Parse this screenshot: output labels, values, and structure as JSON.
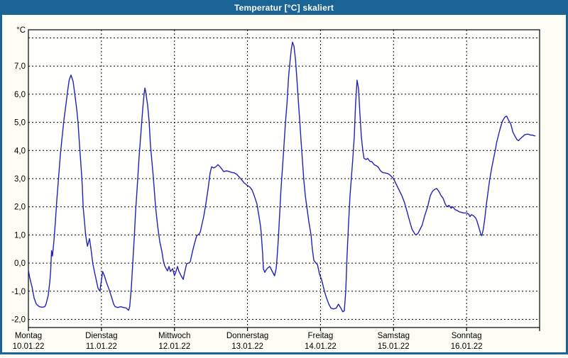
{
  "window": {
    "title": "Temperatur [°C] skaliert"
  },
  "colors": {
    "titlebar": "#1a6496",
    "frame": "#1a6496",
    "content_bg": "#fdfdf6",
    "plot_bg": "#fffffe",
    "grid": "#000000",
    "axis_border": "#000000",
    "line": "#2222b8",
    "label_text": "#000000"
  },
  "chart_data": {
    "type": "line",
    "title": "Temperatur [°C] skaliert",
    "legend": "none",
    "grid": "dashed",
    "y_axis": {
      "unit_label": "°C",
      "range": [
        -2.29,
        8.29
      ],
      "grid_values": [
        8,
        7,
        6,
        5,
        4,
        3,
        2,
        1,
        0,
        -1,
        -2
      ],
      "tick_values": [
        7,
        6,
        5,
        4,
        3,
        2,
        1,
        0,
        -1,
        -2
      ],
      "tick_labels": [
        "7,0",
        "6,0",
        "5,0",
        "4,0",
        "3,0",
        "2,0",
        "1,0",
        "0,0",
        "-1,0",
        "-2,0"
      ]
    },
    "x_axis": {
      "range_hours": [
        0,
        168
      ],
      "tick_hours": [
        0,
        24,
        48,
        72,
        96,
        120,
        144,
        168
      ],
      "grid_hours": [
        24,
        48,
        72,
        96,
        120,
        144
      ],
      "day_labels": [
        {
          "name": "Montag",
          "date": "10.01.22"
        },
        {
          "name": "Dienstag",
          "date": "11.01.22"
        },
        {
          "name": "Mittwoch",
          "date": "12.01.22"
        },
        {
          "name": "Donnerstag",
          "date": "13.01.22"
        },
        {
          "name": "Freitag",
          "date": "14.01.22"
        },
        {
          "name": "Samstag",
          "date": "15.01.22"
        },
        {
          "name": "Sonntag",
          "date": "16.01.22"
        }
      ]
    },
    "series": [
      {
        "name": "Temperatur [°C] skaliert",
        "color": "#2222b8",
        "points": [
          [
            0.0,
            -0.25
          ],
          [
            0.4,
            -0.5
          ],
          [
            1.2,
            -0.85
          ],
          [
            1.9,
            -1.25
          ],
          [
            2.6,
            -1.45
          ],
          [
            3.0,
            -1.5
          ],
          [
            3.6,
            -1.55
          ],
          [
            4.5,
            -1.57
          ],
          [
            5.4,
            -1.55
          ],
          [
            5.8,
            -1.45
          ],
          [
            6.5,
            -1.15
          ],
          [
            7.0,
            -0.7
          ],
          [
            7.3,
            -0.3
          ],
          [
            7.6,
            0.44
          ],
          [
            7.9,
            0.25
          ],
          [
            8.4,
            0.8
          ],
          [
            8.9,
            1.5
          ],
          [
            9.3,
            2.2
          ],
          [
            9.9,
            3.0
          ],
          [
            10.5,
            3.85
          ],
          [
            11.1,
            4.5
          ],
          [
            11.7,
            5.1
          ],
          [
            12.3,
            5.6
          ],
          [
            12.8,
            6.05
          ],
          [
            13.4,
            6.5
          ],
          [
            14.0,
            6.68
          ],
          [
            14.7,
            6.45
          ],
          [
            15.2,
            6.05
          ],
          [
            15.9,
            5.45
          ],
          [
            16.3,
            5.0
          ],
          [
            16.8,
            4.2
          ],
          [
            17.3,
            3.45
          ],
          [
            17.7,
            2.75
          ],
          [
            18.0,
            2.0
          ],
          [
            18.4,
            1.5
          ],
          [
            18.8,
            1.0
          ],
          [
            19.4,
            0.6
          ],
          [
            20.1,
            0.87
          ],
          [
            20.5,
            0.55
          ],
          [
            21.2,
            -0.05
          ],
          [
            22.2,
            -0.55
          ],
          [
            22.9,
            -0.9
          ],
          [
            23.5,
            -1.0
          ],
          [
            24.0,
            -0.6
          ],
          [
            24.4,
            -0.3
          ],
          [
            25.0,
            -0.45
          ],
          [
            25.7,
            -0.7
          ],
          [
            26.4,
            -0.9
          ],
          [
            27.3,
            -1.2
          ],
          [
            28.0,
            -1.45
          ],
          [
            28.5,
            -1.55
          ],
          [
            29.4,
            -1.58
          ],
          [
            30.3,
            -1.55
          ],
          [
            31.3,
            -1.58
          ],
          [
            32.2,
            -1.6
          ],
          [
            32.9,
            -1.68
          ],
          [
            33.3,
            -1.55
          ],
          [
            33.8,
            -0.9
          ],
          [
            34.3,
            0.0
          ],
          [
            34.8,
            0.9
          ],
          [
            35.2,
            1.8
          ],
          [
            35.7,
            2.6
          ],
          [
            36.4,
            3.8
          ],
          [
            37.1,
            4.8
          ],
          [
            37.6,
            5.5
          ],
          [
            38.0,
            6.0
          ],
          [
            38.3,
            6.22
          ],
          [
            38.6,
            6.05
          ],
          [
            39.2,
            5.6
          ],
          [
            39.7,
            5.0
          ],
          [
            40.1,
            4.2
          ],
          [
            40.6,
            3.6
          ],
          [
            41.1,
            3.0
          ],
          [
            41.8,
            2.0
          ],
          [
            42.5,
            1.3
          ],
          [
            43.2,
            0.75
          ],
          [
            43.9,
            0.4
          ],
          [
            44.3,
            0.1
          ],
          [
            44.8,
            -0.1
          ],
          [
            45.2,
            -0.18
          ],
          [
            45.7,
            -0.28
          ],
          [
            46.2,
            -0.12
          ],
          [
            46.7,
            -0.3
          ],
          [
            47.4,
            -0.2
          ],
          [
            48.0,
            -0.45
          ],
          [
            48.5,
            -0.3
          ],
          [
            49.0,
            -0.12
          ],
          [
            49.5,
            -0.3
          ],
          [
            50.2,
            -0.45
          ],
          [
            50.9,
            -0.58
          ],
          [
            51.3,
            -0.35
          ],
          [
            52.0,
            -0.02
          ],
          [
            52.7,
            0.0
          ],
          [
            53.2,
            0.05
          ],
          [
            53.9,
            0.4
          ],
          [
            54.6,
            0.7
          ],
          [
            55.3,
            0.97
          ],
          [
            56.0,
            1.02
          ],
          [
            56.5,
            1.1
          ],
          [
            57.2,
            1.45
          ],
          [
            57.6,
            1.65
          ],
          [
            58.3,
            2.1
          ],
          [
            59.0,
            2.6
          ],
          [
            59.7,
            3.2
          ],
          [
            60.2,
            3.42
          ],
          [
            60.9,
            3.38
          ],
          [
            61.6,
            3.42
          ],
          [
            62.3,
            3.5
          ],
          [
            63.0,
            3.42
          ],
          [
            63.5,
            3.35
          ],
          [
            64.2,
            3.25
          ],
          [
            65.1,
            3.28
          ],
          [
            66.0,
            3.25
          ],
          [
            66.9,
            3.22
          ],
          [
            67.8,
            3.2
          ],
          [
            68.5,
            3.15
          ],
          [
            70.0,
            2.97
          ],
          [
            70.9,
            2.85
          ],
          [
            71.8,
            2.77
          ],
          [
            72.8,
            2.7
          ],
          [
            73.5,
            2.6
          ],
          [
            74.2,
            2.4
          ],
          [
            75.1,
            2.1
          ],
          [
            75.8,
            1.64
          ],
          [
            76.3,
            1.3
          ],
          [
            76.5,
            1.06
          ],
          [
            77.0,
            0.3
          ],
          [
            77.2,
            -0.2
          ],
          [
            77.7,
            -0.33
          ],
          [
            78.1,
            -0.25
          ],
          [
            78.6,
            -0.18
          ],
          [
            79.3,
            -0.12
          ],
          [
            79.7,
            -0.2
          ],
          [
            80.4,
            -0.35
          ],
          [
            80.9,
            -0.45
          ],
          [
            81.4,
            -0.2
          ],
          [
            81.6,
            0.0
          ],
          [
            82.1,
            0.8
          ],
          [
            82.5,
            1.6
          ],
          [
            83.0,
            2.6
          ],
          [
            83.5,
            3.4
          ],
          [
            84.0,
            4.2
          ],
          [
            84.5,
            5.0
          ],
          [
            85.0,
            5.7
          ],
          [
            85.5,
            6.6
          ],
          [
            86.0,
            7.2
          ],
          [
            86.4,
            7.6
          ],
          [
            86.8,
            7.85
          ],
          [
            87.3,
            7.7
          ],
          [
            87.8,
            7.2
          ],
          [
            88.2,
            6.6
          ],
          [
            88.7,
            5.8
          ],
          [
            89.2,
            5.0
          ],
          [
            89.6,
            4.35
          ],
          [
            90.1,
            3.6
          ],
          [
            90.5,
            2.95
          ],
          [
            91.0,
            2.4
          ],
          [
            91.5,
            2.0
          ],
          [
            92.2,
            1.45
          ],
          [
            92.9,
            1.0
          ],
          [
            93.3,
            0.5
          ],
          [
            93.8,
            0.1
          ],
          [
            94.5,
            0.0
          ],
          [
            95.0,
            -0.05
          ],
          [
            95.7,
            -0.4
          ],
          [
            96.4,
            -0.6
          ],
          [
            97.3,
            -1.0
          ],
          [
            98.0,
            -1.25
          ],
          [
            98.7,
            -1.45
          ],
          [
            99.4,
            -1.6
          ],
          [
            100.3,
            -1.63
          ],
          [
            101.2,
            -1.6
          ],
          [
            101.9,
            -1.46
          ],
          [
            102.7,
            -1.6
          ],
          [
            103.3,
            -1.73
          ],
          [
            103.8,
            -1.7
          ],
          [
            104.3,
            -1.0
          ],
          [
            104.7,
            0.2
          ],
          [
            105.2,
            1.4
          ],
          [
            105.7,
            2.4
          ],
          [
            106.2,
            3.1
          ],
          [
            106.6,
            3.7
          ],
          [
            107.1,
            4.5
          ],
          [
            107.5,
            5.6
          ],
          [
            108.0,
            6.5
          ],
          [
            108.5,
            6.2
          ],
          [
            108.9,
            5.4
          ],
          [
            109.4,
            4.5
          ],
          [
            109.9,
            4.0
          ],
          [
            110.3,
            3.72
          ],
          [
            111.0,
            3.68
          ],
          [
            111.5,
            3.72
          ],
          [
            112.2,
            3.62
          ],
          [
            112.9,
            3.6
          ],
          [
            113.6,
            3.5
          ],
          [
            114.3,
            3.46
          ],
          [
            115.0,
            3.4
          ],
          [
            115.7,
            3.28
          ],
          [
            116.4,
            3.22
          ],
          [
            117.3,
            3.2
          ],
          [
            118.2,
            3.18
          ],
          [
            118.9,
            3.12
          ],
          [
            120.0,
            3.0
          ],
          [
            120.9,
            2.8
          ],
          [
            121.8,
            2.6
          ],
          [
            122.7,
            2.4
          ],
          [
            123.6,
            2.15
          ],
          [
            124.5,
            1.8
          ],
          [
            125.4,
            1.45
          ],
          [
            126.1,
            1.2
          ],
          [
            126.9,
            1.05
          ],
          [
            127.3,
            1.0
          ],
          [
            128.0,
            1.05
          ],
          [
            128.7,
            1.2
          ],
          [
            129.4,
            1.35
          ],
          [
            130.3,
            1.7
          ],
          [
            131.2,
            2.0
          ],
          [
            132.1,
            2.4
          ],
          [
            132.8,
            2.55
          ],
          [
            133.5,
            2.62
          ],
          [
            134.2,
            2.65
          ],
          [
            134.9,
            2.55
          ],
          [
            135.6,
            2.4
          ],
          [
            136.3,
            2.3
          ],
          [
            137.0,
            2.1
          ],
          [
            137.5,
            2.0
          ],
          [
            138.2,
            2.05
          ],
          [
            138.9,
            1.95
          ],
          [
            139.5,
            2.0
          ],
          [
            140.2,
            1.9
          ],
          [
            140.9,
            1.87
          ],
          [
            141.6,
            1.82
          ],
          [
            142.3,
            1.8
          ],
          [
            143.0,
            1.78
          ],
          [
            144.0,
            1.78
          ],
          [
            144.7,
            1.74
          ],
          [
            145.1,
            1.65
          ],
          [
            145.6,
            1.72
          ],
          [
            146.3,
            1.68
          ],
          [
            147.0,
            1.6
          ],
          [
            147.4,
            1.5
          ],
          [
            148.1,
            1.25
          ],
          [
            148.6,
            1.05
          ],
          [
            149.0,
            0.97
          ],
          [
            149.5,
            1.2
          ],
          [
            150.0,
            1.6
          ],
          [
            150.4,
            2.0
          ],
          [
            150.9,
            2.4
          ],
          [
            151.6,
            2.97
          ],
          [
            152.3,
            3.4
          ],
          [
            152.8,
            3.68
          ],
          [
            153.5,
            4.05
          ],
          [
            153.9,
            4.3
          ],
          [
            154.6,
            4.6
          ],
          [
            155.1,
            4.8
          ],
          [
            155.8,
            5.05
          ],
          [
            156.3,
            5.14
          ],
          [
            156.7,
            5.2
          ],
          [
            157.2,
            5.22
          ],
          [
            157.6,
            5.12
          ],
          [
            158.1,
            5.02
          ],
          [
            158.5,
            4.95
          ],
          [
            159.2,
            4.66
          ],
          [
            159.7,
            4.55
          ],
          [
            160.2,
            4.45
          ],
          [
            160.6,
            4.38
          ],
          [
            161.1,
            4.35
          ],
          [
            161.5,
            4.4
          ],
          [
            162.0,
            4.45
          ],
          [
            162.7,
            4.52
          ],
          [
            163.1,
            4.56
          ],
          [
            163.8,
            4.58
          ],
          [
            164.3,
            4.58
          ],
          [
            165.0,
            4.55
          ],
          [
            165.6,
            4.55
          ],
          [
            166.1,
            4.53
          ],
          [
            166.5,
            4.52
          ]
        ]
      }
    ]
  }
}
